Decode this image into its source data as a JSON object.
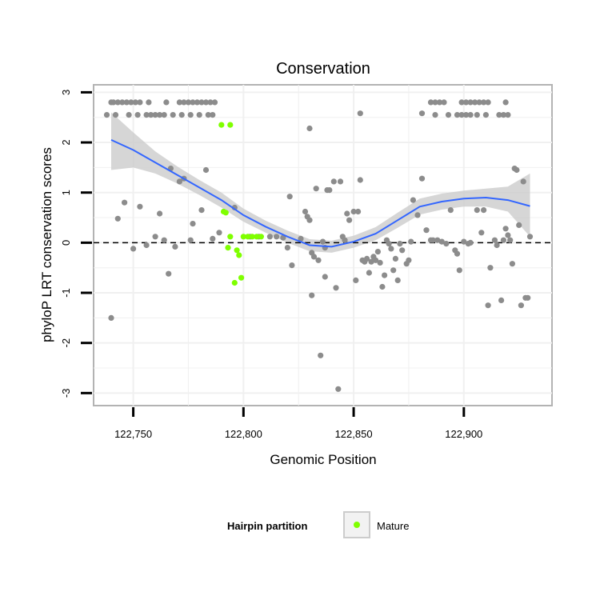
{
  "chart_data": {
    "type": "scatter",
    "title": "Conservation",
    "xlabel": "Genomic Position",
    "ylabel": "phyloP LRT conservation scores",
    "xlim": [
      122732,
      122940
    ],
    "ylim": [
      -3.25,
      3.15
    ],
    "x_ticks": [
      122750,
      122800,
      122850,
      122900
    ],
    "x_tick_labels": [
      "122,750",
      "122,800",
      "122,850",
      "122,900"
    ],
    "y_ticks": [
      -3,
      -2,
      -1,
      0,
      1,
      2,
      3
    ],
    "y_tick_labels": [
      "-3",
      "-2",
      "-1",
      "0",
      "1",
      "2",
      "3"
    ],
    "reference_line_y": 0,
    "colors": {
      "background": "#ffffff",
      "panel_border": "#b3b3b3",
      "grid": "#f0f0f0",
      "reference_line": "#000000",
      "point_gray": "#8c8c8c",
      "point_mature": "#7fff00",
      "smooth_line": "#3366ff",
      "ribbon": "#cccccc"
    },
    "legend": {
      "title": "Hairpin partition",
      "position": "bottom",
      "entries": [
        "Mature"
      ]
    },
    "series": [
      {
        "name": "other",
        "color": "#8c8c8c",
        "points": [
          [
            122740,
            2.8
          ],
          [
            122741,
            2.8
          ],
          [
            122743,
            2.8
          ],
          [
            122745,
            2.8
          ],
          [
            122747,
            2.8
          ],
          [
            122749,
            2.8
          ],
          [
            122751,
            2.8
          ],
          [
            122753,
            2.8
          ],
          [
            122757,
            2.8
          ],
          [
            122765,
            2.8
          ],
          [
            122771,
            2.8
          ],
          [
            122773,
            2.8
          ],
          [
            122775,
            2.8
          ],
          [
            122777,
            2.8
          ],
          [
            122779,
            2.8
          ],
          [
            122781,
            2.8
          ],
          [
            122783,
            2.8
          ],
          [
            122785,
            2.8
          ],
          [
            122787,
            2.8
          ],
          [
            122738,
            2.55
          ],
          [
            122742,
            2.55
          ],
          [
            122748,
            2.55
          ],
          [
            122752,
            2.55
          ],
          [
            122756,
            2.55
          ],
          [
            122758,
            2.55
          ],
          [
            122760,
            2.55
          ],
          [
            122762,
            2.55
          ],
          [
            122764,
            2.55
          ],
          [
            122768,
            2.55
          ],
          [
            122772,
            2.55
          ],
          [
            122776,
            2.55
          ],
          [
            122780,
            2.55
          ],
          [
            122784,
            2.55
          ],
          [
            122786,
            2.55
          ],
          [
            122830,
            2.28
          ],
          [
            122853,
            2.58
          ],
          [
            122881,
            2.58
          ],
          [
            122887,
            2.55
          ],
          [
            122893,
            2.55
          ],
          [
            122897,
            2.55
          ],
          [
            122899,
            2.55
          ],
          [
            122901,
            2.55
          ],
          [
            122903,
            2.55
          ],
          [
            122906,
            2.55
          ],
          [
            122910,
            2.55
          ],
          [
            122916,
            2.55
          ],
          [
            122918,
            2.55
          ],
          [
            122920,
            2.55
          ],
          [
            122885,
            2.8
          ],
          [
            122887,
            2.8
          ],
          [
            122889,
            2.8
          ],
          [
            122891,
            2.8
          ],
          [
            122899,
            2.8
          ],
          [
            122901,
            2.8
          ],
          [
            122903,
            2.8
          ],
          [
            122905,
            2.8
          ],
          [
            122907,
            2.8
          ],
          [
            122909,
            2.8
          ],
          [
            122911,
            2.8
          ],
          [
            122919,
            2.8
          ],
          [
            122740,
            -1.5
          ],
          [
            122743,
            0.48
          ],
          [
            122746,
            0.8
          ],
          [
            122750,
            -0.12
          ],
          [
            122753,
            0.72
          ],
          [
            122756,
            -0.05
          ],
          [
            122760,
            0.12
          ],
          [
            122762,
            0.58
          ],
          [
            122764,
            0.05
          ],
          [
            122766,
            -0.62
          ],
          [
            122767,
            1.48
          ],
          [
            122769,
            -0.08
          ],
          [
            122771,
            1.22
          ],
          [
            122773,
            1.28
          ],
          [
            122776,
            0.05
          ],
          [
            122777,
            0.38
          ],
          [
            122781,
            0.65
          ],
          [
            122783,
            1.45
          ],
          [
            122786,
            0.08
          ],
          [
            122789,
            0.2
          ],
          [
            122796,
            0.7
          ],
          [
            122803,
            0.12
          ],
          [
            122807,
            0.12
          ],
          [
            122812,
            0.12
          ],
          [
            122815,
            0.12
          ],
          [
            122818,
            0.1
          ],
          [
            122820,
            -0.1
          ],
          [
            122821,
            0.92
          ],
          [
            122822,
            -0.45
          ],
          [
            122826,
            0.08
          ],
          [
            122828,
            0.62
          ],
          [
            122829,
            0.52
          ],
          [
            122830,
            0.45
          ],
          [
            122831,
            -0.2
          ],
          [
            122831,
            -1.05
          ],
          [
            122832,
            -0.28
          ],
          [
            122833,
            1.08
          ],
          [
            122834,
            -0.35
          ],
          [
            122835,
            -2.25
          ],
          [
            122836,
            0.02
          ],
          [
            122837,
            -0.1
          ],
          [
            122837,
            -0.68
          ],
          [
            122838,
            1.05
          ],
          [
            122839,
            1.05
          ],
          [
            122841,
            1.22
          ],
          [
            122842,
            -0.9
          ],
          [
            122843,
            -2.92
          ],
          [
            122844,
            1.22
          ],
          [
            122845,
            0.12
          ],
          [
            122846,
            0.05
          ],
          [
            122847,
            0.58
          ],
          [
            122848,
            0.45
          ],
          [
            122850,
            0.62
          ],
          [
            122851,
            -0.75
          ],
          [
            122852,
            0.62
          ],
          [
            122853,
            1.25
          ],
          [
            122854,
            -0.35
          ],
          [
            122855,
            -0.38
          ],
          [
            122856,
            -0.32
          ],
          [
            122857,
            -0.6
          ],
          [
            122858,
            -0.38
          ],
          [
            122859,
            -0.28
          ],
          [
            122860,
            -0.35
          ],
          [
            122861,
            -0.18
          ],
          [
            122862,
            -0.4
          ],
          [
            122863,
            -0.88
          ],
          [
            122864,
            -0.65
          ],
          [
            122865,
            0.05
          ],
          [
            122866,
            -0.02
          ],
          [
            122867,
            -0.12
          ],
          [
            122868,
            -0.55
          ],
          [
            122869,
            -0.32
          ],
          [
            122870,
            -0.75
          ],
          [
            122871,
            -0.02
          ],
          [
            122872,
            -0.15
          ],
          [
            122874,
            -0.42
          ],
          [
            122875,
            -0.35
          ],
          [
            122876,
            0.02
          ],
          [
            122877,
            0.85
          ],
          [
            122879,
            0.55
          ],
          [
            122881,
            1.28
          ],
          [
            122883,
            0.25
          ],
          [
            122885,
            0.05
          ],
          [
            122886,
            0.05
          ],
          [
            122888,
            0.05
          ],
          [
            122890,
            0.02
          ],
          [
            122892,
            -0.02
          ],
          [
            122894,
            0.65
          ],
          [
            122896,
            -0.15
          ],
          [
            122897,
            -0.22
          ],
          [
            122898,
            -0.55
          ],
          [
            122900,
            0.02
          ],
          [
            122902,
            -0.02
          ],
          [
            122903,
            0.0
          ],
          [
            122906,
            0.65
          ],
          [
            122908,
            0.2
          ],
          [
            122909,
            0.65
          ],
          [
            122911,
            -1.25
          ],
          [
            122912,
            -0.5
          ],
          [
            122914,
            0.05
          ],
          [
            122915,
            -0.05
          ],
          [
            122917,
            -1.15
          ],
          [
            122918,
            0.05
          ],
          [
            122919,
            0.28
          ],
          [
            122920,
            0.15
          ],
          [
            122921,
            0.05
          ],
          [
            122922,
            -0.42
          ],
          [
            122923,
            1.48
          ],
          [
            122924,
            1.45
          ],
          [
            122925,
            0.35
          ],
          [
            122926,
            -1.25
          ],
          [
            122927,
            1.22
          ],
          [
            122928,
            -1.1
          ],
          [
            122929,
            -1.1
          ],
          [
            122930,
            0.12
          ]
        ]
      },
      {
        "name": "Mature",
        "color": "#7fff00",
        "points": [
          [
            122790,
            2.35
          ],
          [
            122794,
            2.35
          ],
          [
            122791,
            0.62
          ],
          [
            122792,
            0.6
          ],
          [
            122793,
            -0.1
          ],
          [
            122794,
            0.12
          ],
          [
            122796,
            -0.8
          ],
          [
            122797,
            -0.15
          ],
          [
            122798,
            -0.25
          ],
          [
            122799,
            -0.7
          ],
          [
            122800,
            0.12
          ],
          [
            122802,
            0.12
          ],
          [
            122804,
            0.12
          ],
          [
            122806,
            0.12
          ],
          [
            122808,
            0.12
          ]
        ]
      }
    ],
    "smooth": {
      "x": [
        122740,
        122750,
        122760,
        122770,
        122780,
        122790,
        122800,
        122810,
        122820,
        122830,
        122840,
        122850,
        122860,
        122870,
        122880,
        122890,
        122900,
        122910,
        122920,
        122930
      ],
      "y": [
        2.05,
        1.85,
        1.6,
        1.35,
        1.1,
        0.85,
        0.55,
        0.32,
        0.12,
        -0.05,
        -0.08,
        0.02,
        0.18,
        0.45,
        0.72,
        0.82,
        0.88,
        0.9,
        0.85,
        0.73
      ],
      "lower": [
        1.45,
        1.5,
        1.38,
        1.18,
        0.95,
        0.7,
        0.42,
        0.2,
        0.0,
        -0.17,
        -0.2,
        -0.1,
        0.05,
        0.3,
        0.56,
        0.66,
        0.72,
        0.72,
        0.62,
        0.12
      ],
      "upper": [
        2.6,
        2.2,
        1.82,
        1.52,
        1.25,
        1.0,
        0.68,
        0.44,
        0.24,
        0.07,
        0.04,
        0.14,
        0.31,
        0.6,
        0.88,
        0.98,
        1.04,
        1.08,
        1.12,
        1.38
      ]
    }
  }
}
